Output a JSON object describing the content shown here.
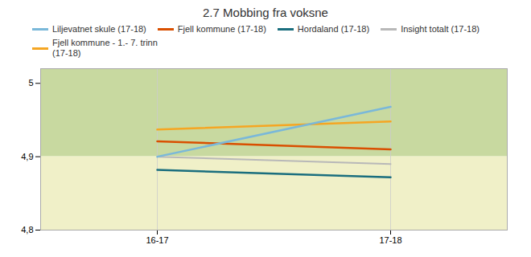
{
  "chart_data": {
    "type": "line",
    "title": "2.7 Mobbing fra voksne",
    "categories": [
      "16-17",
      "17-18"
    ],
    "series": [
      {
        "name": "Liljevatnet skule (17-18)",
        "color": "#7ab8d9",
        "values": [
          4.9,
          4.968
        ]
      },
      {
        "name": "Fjell kommune (17-18)",
        "color": "#d94f00",
        "values": [
          4.921,
          4.91
        ]
      },
      {
        "name": "Hordaland (17-18)",
        "color": "#1a6e7e",
        "values": [
          4.882,
          4.872
        ]
      },
      {
        "name": "Insight totalt (17-18)",
        "color": "#b8b8b8",
        "values": [
          4.9,
          4.89
        ]
      },
      {
        "name": "Fjell kommune - 1.- 7. trinn\n(17-18)",
        "color": "#f5a623",
        "values": [
          4.937,
          4.948
        ]
      }
    ],
    "ylim": [
      4.8,
      5.02
    ],
    "yticks": [
      {
        "value": 4.8,
        "label": "4,8"
      },
      {
        "value": 4.9,
        "label": "4,9"
      },
      5
    ],
    "bands": [
      {
        "ymin": 4.9,
        "ymax": 5.02,
        "color": "#c8d9a0"
      },
      {
        "ymin": 4.8,
        "ymax": 4.9,
        "color": "#f0f0c8"
      }
    ],
    "grid": "x",
    "legend": "top"
  }
}
